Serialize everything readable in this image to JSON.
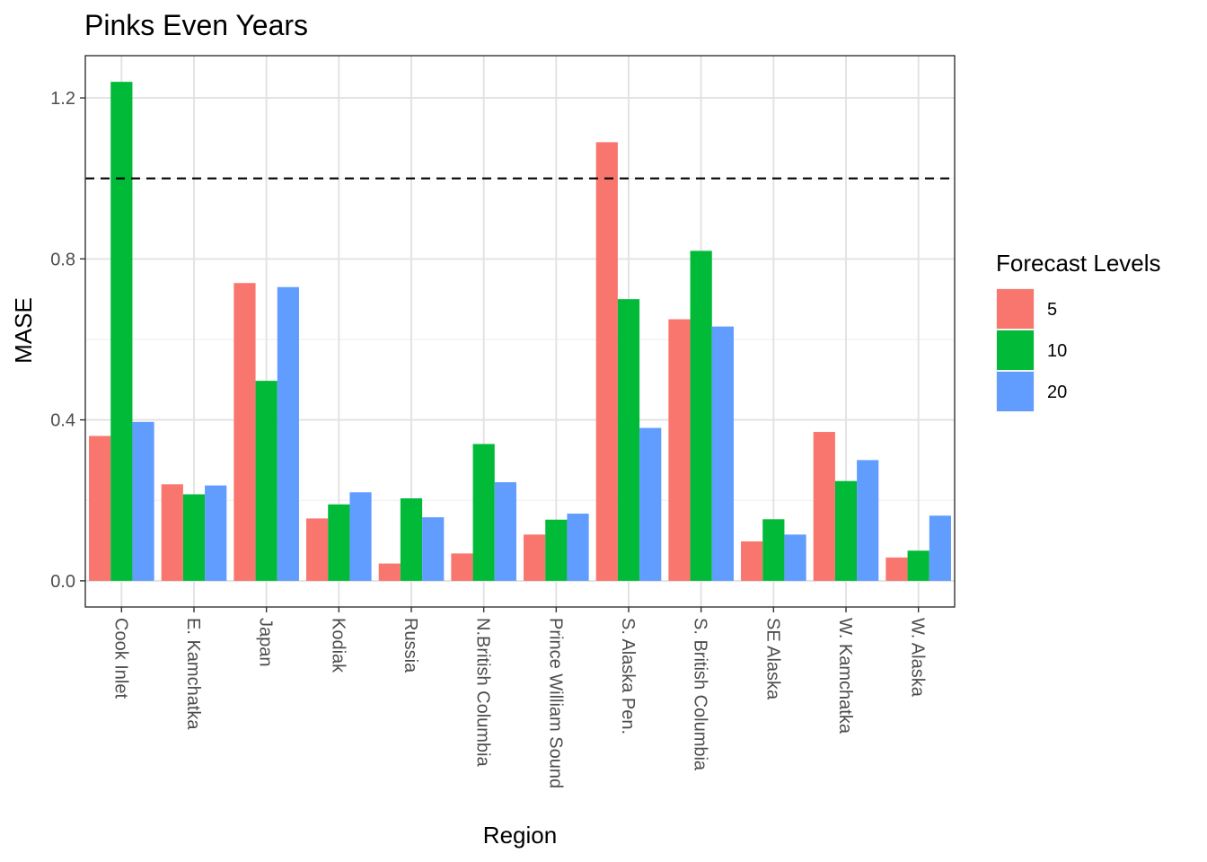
{
  "chart_data": {
    "type": "bar",
    "title": "Pinks Even Years",
    "xlabel": "Region",
    "ylabel": "MASE",
    "ylim": [
      -0.065,
      1.305
    ],
    "yticks": [
      0.0,
      0.4,
      0.8,
      1.2
    ],
    "ytick_labels": [
      "0.0",
      "0.4",
      "0.8",
      "1.2"
    ],
    "reference_line": {
      "y": 1.0,
      "style": "dashed",
      "color": "#000000"
    },
    "grid": true,
    "legend_position": "right",
    "legend_title": "Forecast Levels",
    "categories": [
      "Cook Inlet",
      "E. Kamchatka",
      "Japan",
      "Kodiak",
      "Russia",
      "N.British Columbia",
      "Prince William Sound",
      "S. Alaska Pen.",
      "S. British Columbia",
      "SE Alaska",
      "W. Kamchatka",
      "W. Alaska"
    ],
    "series": [
      {
        "name": "5",
        "color": "#F8766D",
        "values": [
          0.36,
          0.24,
          0.74,
          0.155,
          0.043,
          0.068,
          0.115,
          1.09,
          0.65,
          0.098,
          0.37,
          0.058
        ]
      },
      {
        "name": "10",
        "color": "#00BA38",
        "values": [
          1.24,
          0.215,
          0.497,
          0.19,
          0.205,
          0.34,
          0.152,
          0.7,
          0.82,
          0.153,
          0.248,
          0.075
        ]
      },
      {
        "name": "20",
        "color": "#619CFF",
        "values": [
          0.395,
          0.237,
          0.73,
          0.22,
          0.158,
          0.245,
          0.167,
          0.38,
          0.632,
          0.115,
          0.3,
          0.162
        ]
      }
    ]
  }
}
